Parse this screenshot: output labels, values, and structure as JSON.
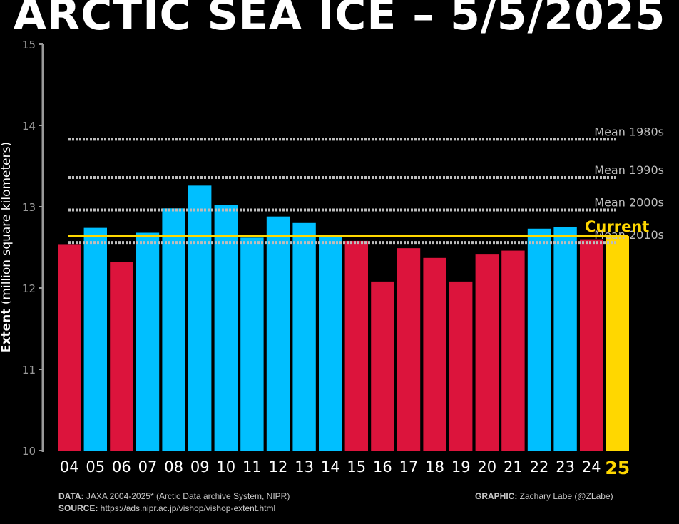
{
  "title": "ARCTIC SEA ICE – 5/5/2025",
  "chart_data": {
    "type": "bar",
    "ylabel_bold": "Extent",
    "ylabel_rest": "(million square kilometers)",
    "ylim": [
      10,
      15
    ],
    "yticks": [
      "10",
      "11",
      "12",
      "13",
      "14",
      "15"
    ],
    "categories": [
      "04",
      "05",
      "06",
      "07",
      "08",
      "09",
      "10",
      "11",
      "12",
      "13",
      "14",
      "15",
      "16",
      "17",
      "18",
      "19",
      "20",
      "21",
      "22",
      "23",
      "24",
      "25"
    ],
    "values": [
      12.54,
      12.74,
      12.32,
      12.68,
      12.98,
      13.26,
      13.02,
      12.62,
      12.88,
      12.8,
      12.65,
      12.58,
      12.08,
      12.49,
      12.37,
      12.08,
      12.42,
      12.46,
      12.73,
      12.75,
      12.6,
      12.64
    ],
    "bar_colors": [
      "#dc143c",
      "#00bfff",
      "#dc143c",
      "#00bfff",
      "#00bfff",
      "#00bfff",
      "#00bfff",
      "#00bfff",
      "#00bfff",
      "#00bfff",
      "#00bfff",
      "#dc143c",
      "#dc143c",
      "#dc143c",
      "#dc143c",
      "#dc143c",
      "#dc143c",
      "#dc143c",
      "#00bfff",
      "#00bfff",
      "#dc143c",
      "#ffd700"
    ],
    "highlight_index": 21,
    "means": [
      {
        "label": "Mean 1980s",
        "value": 13.83
      },
      {
        "label": "Mean 1990s",
        "value": 13.36
      },
      {
        "label": "Mean 2000s",
        "value": 12.96
      },
      {
        "label": "Mean 2010s",
        "value": 12.56
      }
    ],
    "current": {
      "label": "Current",
      "value": 12.64,
      "color": "#ffd700"
    },
    "colors": {
      "above": "#00bfff",
      "below": "#dc143c",
      "current": "#ffd700",
      "mean_line": "#bdbdbd",
      "axis": "#9a9a9a"
    }
  },
  "footer": {
    "data_label": "DATA:",
    "data_text": " JAXA 2004-2025* (Arctic Data archive System, NIPR)",
    "source_label": "SOURCE:",
    "source_text": " https://ads.nipr.ac.jp/vishop/vishop-extent.html",
    "graphic_label": "GRAPHIC:",
    "graphic_text": " Zachary Labe (@ZLabe)"
  }
}
